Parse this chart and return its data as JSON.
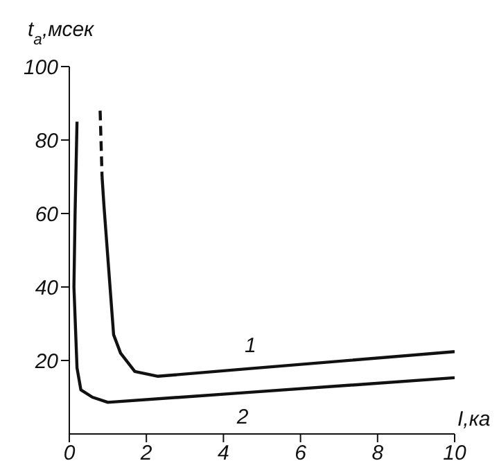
{
  "chart_data": {
    "type": "line",
    "xlabel": "I,ка",
    "ylabel": "t$_{a}$,мсек",
    "xlim": [
      0,
      10
    ],
    "ylim": [
      0,
      100
    ],
    "xticks": [
      0,
      2,
      4,
      6,
      8,
      10
    ],
    "yticks": [
      20,
      40,
      60,
      80,
      100
    ],
    "marker": "none",
    "series": [
      {
        "color": "#111111",
        "line_style": "dashed",
        "x": [
          0.8,
          0.85
        ],
        "values": [
          88,
          70
        ]
      },
      {
        "name": "1",
        "color": "#111111",
        "line_style": "solid",
        "x": [
          0.85,
          0.9,
          1.15,
          1.33,
          1.7,
          2.3,
          4.7,
          10
        ],
        "values": [
          70,
          62,
          27,
          22,
          17,
          15.7,
          17.8,
          22.4
        ]
      },
      {
        "name": "2",
        "color": "#111111",
        "line_style": "solid",
        "x": [
          0.2,
          0.15,
          0.12,
          0.2,
          0.3,
          0.6,
          1.0,
          4.5,
          10
        ],
        "values": [
          85,
          60,
          40,
          18,
          12,
          10,
          8.6,
          11.2,
          15.3
        ]
      }
    ]
  }
}
